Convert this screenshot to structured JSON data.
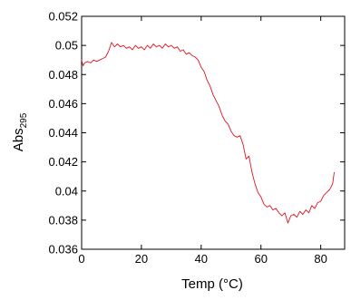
{
  "chart_data": {
    "type": "line",
    "title": "",
    "xlabel": "Temp (°C)",
    "ylabel": "Abs",
    "ylabel_subscript": "295",
    "xlim": [
      0,
      88
    ],
    "ylim": [
      0.036,
      0.052
    ],
    "xticks": [
      0,
      20,
      40,
      60,
      80
    ],
    "xtick_labels": [
      "0",
      "20",
      "40",
      "60",
      "80"
    ],
    "yticks": [
      0.036,
      0.038,
      0.04,
      0.042,
      0.044,
      0.046,
      0.048,
      0.05,
      0.052
    ],
    "ytick_labels": [
      "0.036",
      "0.038",
      "0.04",
      "0.042",
      "0.044",
      "0.046",
      "0.048",
      "0.05",
      "0.052"
    ],
    "grid": false,
    "legend": false,
    "series": [
      {
        "color": "#e0141e",
        "x": [
          0,
          0.5,
          1,
          2,
          3,
          4,
          5,
          6,
          7,
          8,
          9,
          10,
          11,
          12,
          13,
          14,
          15,
          16,
          17,
          18,
          19,
          20,
          21,
          22,
          23,
          24,
          25,
          26,
          27,
          28,
          29,
          30,
          31,
          32,
          33,
          34,
          35,
          36,
          37,
          38,
          39,
          40,
          41,
          42,
          43,
          44,
          45,
          46,
          47,
          48,
          49,
          50,
          51,
          52,
          53,
          54,
          55,
          56,
          57,
          58,
          59,
          60,
          61,
          62,
          63,
          64,
          65,
          66,
          67,
          68,
          69,
          70,
          71,
          72,
          73,
          74,
          75,
          76,
          77,
          78,
          79,
          80,
          81,
          82,
          83,
          84,
          84.5
        ],
        "y": [
          0.049,
          0.0486,
          0.0488,
          0.0489,
          0.0488,
          0.049,
          0.0489,
          0.049,
          0.0491,
          0.0492,
          0.0496,
          0.0502,
          0.0499,
          0.0501,
          0.0499,
          0.05,
          0.0498,
          0.0499,
          0.0497,
          0.05,
          0.0498,
          0.0499,
          0.0497,
          0.05,
          0.0498,
          0.0501,
          0.0499,
          0.05,
          0.0498,
          0.0501,
          0.0499,
          0.05,
          0.0498,
          0.0499,
          0.0496,
          0.0497,
          0.0494,
          0.0495,
          0.0493,
          0.0492,
          0.049,
          0.0485,
          0.0482,
          0.0476,
          0.0472,
          0.0466,
          0.0462,
          0.0458,
          0.0452,
          0.0448,
          0.0446,
          0.0441,
          0.0438,
          0.0437,
          0.0438,
          0.0432,
          0.0422,
          0.0424,
          0.0413,
          0.0405,
          0.0399,
          0.0396,
          0.0391,
          0.0389,
          0.039,
          0.0387,
          0.0388,
          0.0385,
          0.0383,
          0.0385,
          0.0378,
          0.0383,
          0.0384,
          0.0382,
          0.0386,
          0.0384,
          0.0387,
          0.0385,
          0.039,
          0.0388,
          0.0392,
          0.0393,
          0.0397,
          0.0399,
          0.0401,
          0.0405,
          0.0413
        ]
      }
    ]
  }
}
